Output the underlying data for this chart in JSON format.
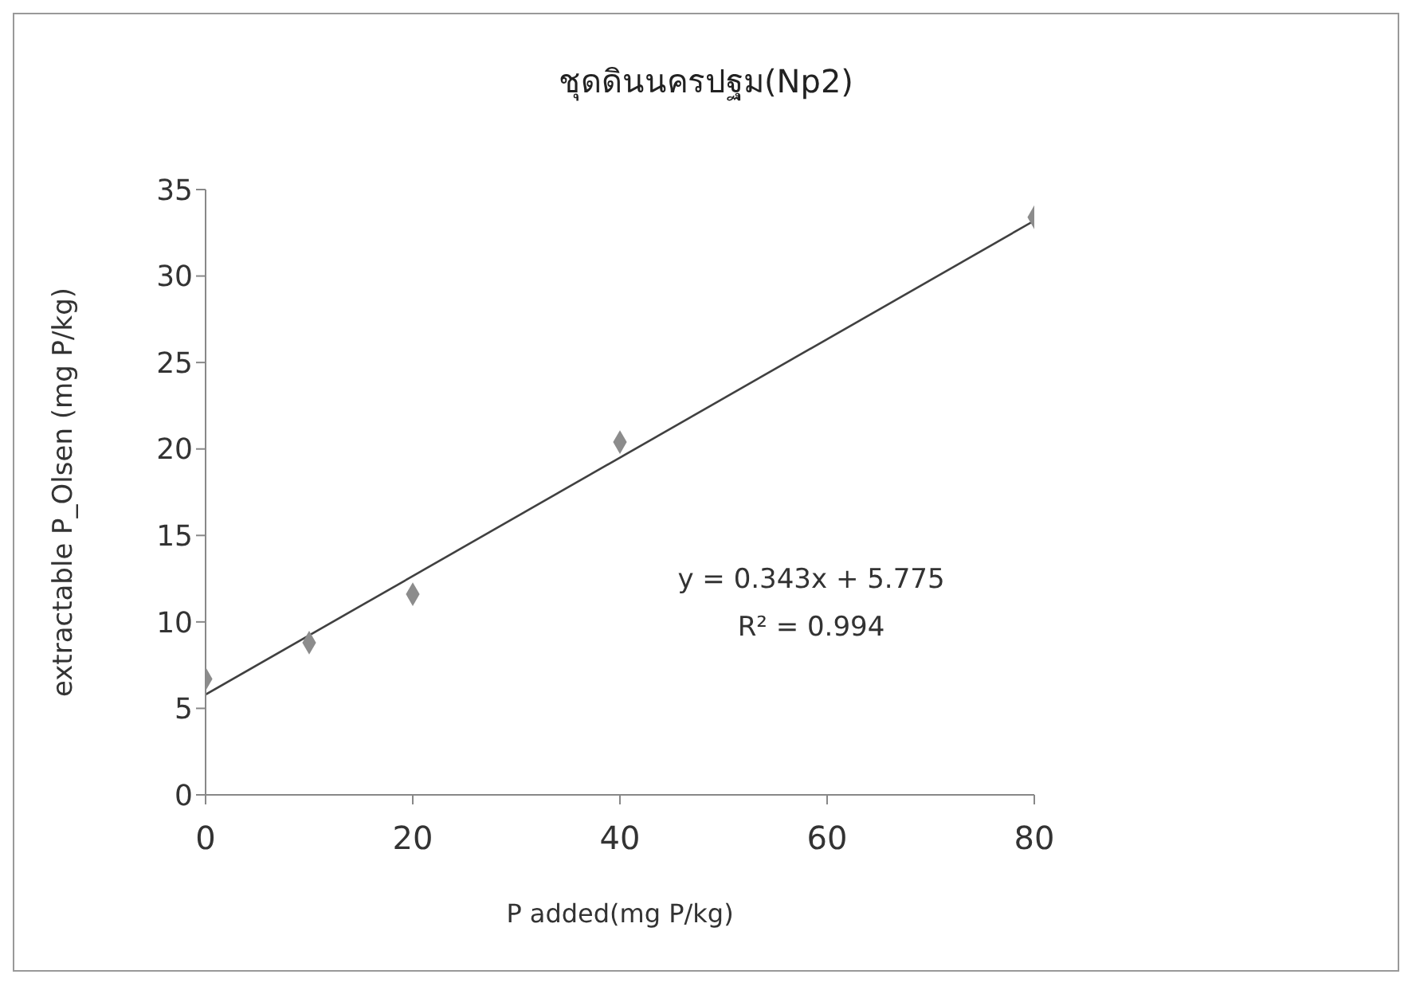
{
  "chart_data": {
    "type": "scatter",
    "title": "ชุดดินนครปฐม(Np2)",
    "xlabel": "P added(mg P/kg)",
    "ylabel": "extractable P_Olsen (mg P/kg)",
    "series": [
      {
        "color": "#8c8c8c",
        "marker": "diamond",
        "x": [
          0,
          10,
          20,
          40,
          80
        ],
        "values": [
          6.7,
          8.8,
          11.6,
          20.4,
          33.4
        ]
      },
      {
        "type": "line",
        "color": "#404040",
        "marker": "none",
        "x": [
          0,
          80
        ],
        "values": [
          5.8,
          33.2
        ]
      }
    ],
    "xlim": [
      0,
      80
    ],
    "xticks": [
      0,
      20,
      40,
      60,
      80
    ],
    "ylim": [
      0,
      35
    ],
    "yticks": [
      0,
      5,
      10,
      15,
      20,
      25,
      30,
      35
    ],
    "grid": false,
    "annotations": [
      "y = 0.343x + 5.775",
      "R² = 0.994"
    ]
  }
}
